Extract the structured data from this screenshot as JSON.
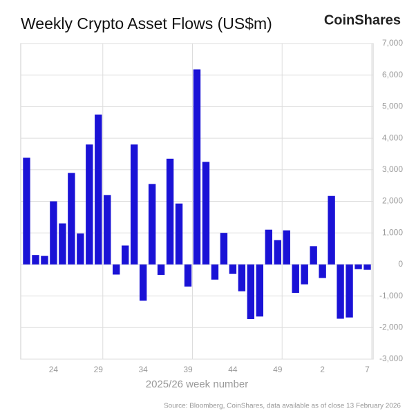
{
  "chart_data": {
    "type": "bar",
    "title": "Weekly Crypto Asset Flows (US$m)",
    "brand": "CoinShares",
    "x_label": "2025/26 week number",
    "source": "Source: Bloomberg, CoinShares, data available as of close 13 February 2026",
    "categories": [
      null,
      null,
      null,
      "24",
      null,
      null,
      null,
      null,
      "29",
      null,
      null,
      null,
      null,
      "34",
      null,
      null,
      null,
      null,
      "39",
      null,
      null,
      null,
      null,
      "44",
      null,
      null,
      null,
      null,
      "49",
      null,
      null,
      null,
      null,
      "2",
      null,
      null,
      null,
      null,
      "7"
    ],
    "values": [
      3380,
      300,
      270,
      2000,
      1300,
      2900,
      980,
      3800,
      4750,
      2200,
      -320,
      600,
      3800,
      -1150,
      2550,
      -330,
      3350,
      1930,
      -700,
      6180,
      3250,
      -480,
      1000,
      -300,
      -850,
      -1730,
      -1650,
      1100,
      770,
      1080,
      -900,
      -630,
      580,
      -430,
      2170,
      -1720,
      -1680,
      -150,
      -170
    ],
    "color": "#1a12d6",
    "ylim": [
      -3000,
      7000
    ],
    "yticks": [
      {
        "value": -3000,
        "label": "-3,000"
      },
      {
        "value": -2000,
        "label": "-2,000"
      },
      {
        "value": -1000,
        "label": "-1,000"
      },
      0,
      {
        "value": 1000,
        "label": "1,000"
      },
      {
        "value": 2000,
        "label": "2,000"
      },
      {
        "value": 3000,
        "label": "3,000"
      },
      {
        "value": 4000,
        "label": "4,000"
      },
      {
        "value": 5000,
        "label": "5,000"
      },
      {
        "value": 6000,
        "label": "6,000"
      },
      {
        "value": 7000,
        "label": "7,000"
      }
    ],
    "grid": true
  }
}
